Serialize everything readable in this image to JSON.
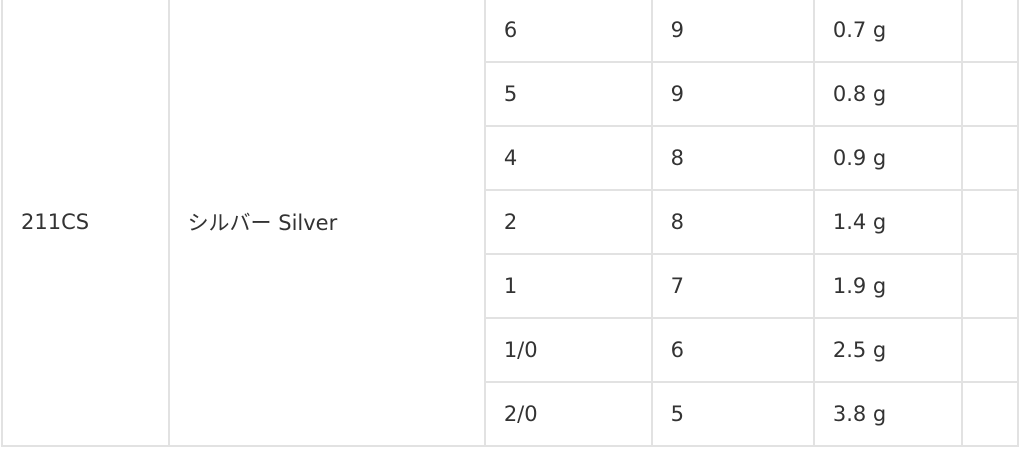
{
  "table": {
    "model": "211CS",
    "color": "シルバー Silver",
    "rows": [
      {
        "size": "6",
        "count": "9",
        "weight": "0.7 g"
      },
      {
        "size": "5",
        "count": "9",
        "weight": "0.8 g"
      },
      {
        "size": "4",
        "count": "8",
        "weight": "0.9 g"
      },
      {
        "size": "2",
        "count": "8",
        "weight": "1.4 g"
      },
      {
        "size": "1",
        "count": "7",
        "weight": "1.9 g"
      },
      {
        "size": "1/0",
        "count": "6",
        "weight": "2.5 g"
      },
      {
        "size": "2/0",
        "count": "5",
        "weight": "3.8 g"
      }
    ]
  }
}
